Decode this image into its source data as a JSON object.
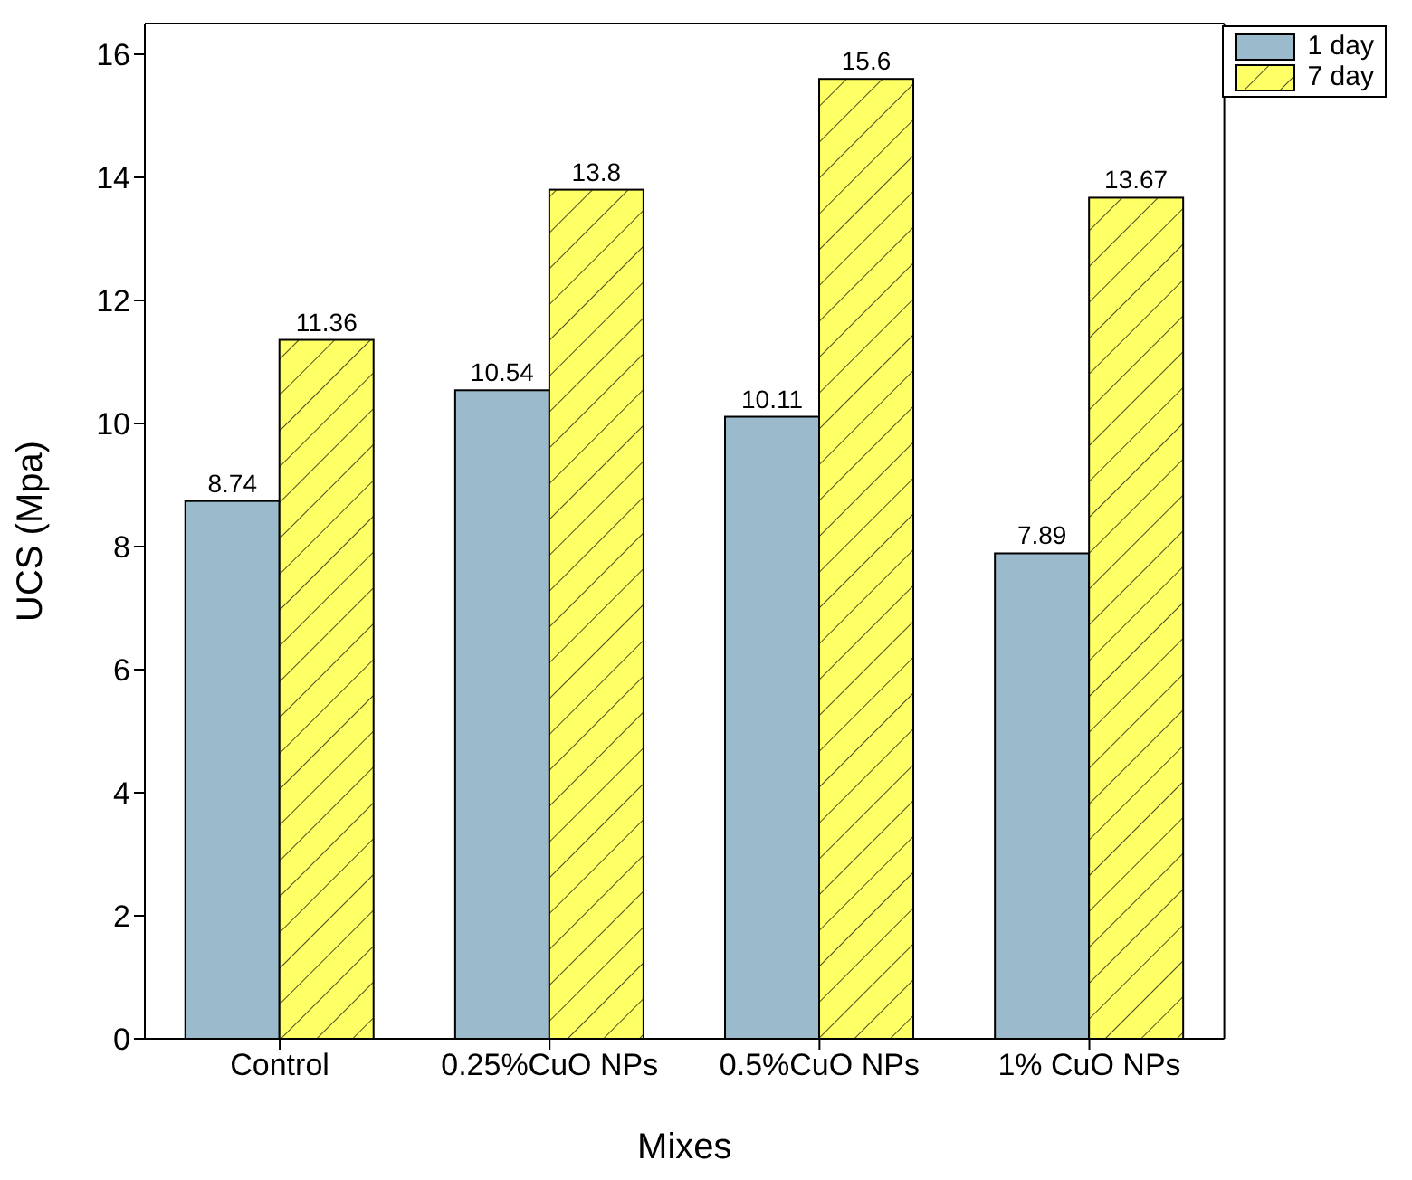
{
  "chart_data": {
    "type": "bar",
    "xlabel": "Mixes",
    "ylabel": "UCS (Mpa)",
    "categories": [
      "Control",
      "0.25%CuO NPs",
      "0.5%CuO NPs",
      "1% CuO NPs"
    ],
    "series": [
      {
        "name": "1 day",
        "color": "#9bbacb",
        "values": [
          8.74,
          10.54,
          10.11,
          7.89
        ]
      },
      {
        "name": "7 day",
        "color": "#ffff66",
        "values": [
          11.36,
          13.8,
          15.6,
          13.67
        ]
      }
    ],
    "ylim": [
      0,
      16.5
    ],
    "yticks": [
      0,
      2,
      4,
      6,
      8,
      10,
      12,
      14,
      16
    ],
    "legend": "top right",
    "data_labels": true
  }
}
